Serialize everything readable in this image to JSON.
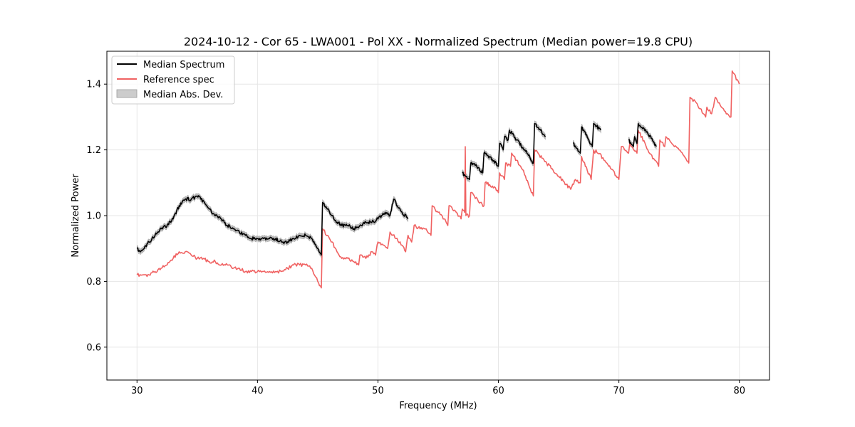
{
  "chart_data": {
    "type": "line",
    "title": "2024-10-12 - Cor 65 - LWA001 - Pol XX - Normalized Spectrum (Median power=19.8 CPU)",
    "xlabel": "Frequency (MHz)",
    "ylabel": "Normalized Power",
    "xlim": [
      27.5,
      82.5
    ],
    "ylim": [
      0.5,
      1.5
    ],
    "xticks": [
      30,
      40,
      50,
      60,
      70,
      80
    ],
    "yticks": [
      0.6,
      0.8,
      1.0,
      1.2,
      1.4
    ],
    "grid": true,
    "legend_position": "upper-left",
    "legend": [
      "Median Spectrum",
      "Reference spec",
      "Median Abs. Dev."
    ],
    "colors": {
      "median": "#000000",
      "reference": "#f06262",
      "mad": "#bdbdbd"
    },
    "series": [
      {
        "name": "Median Spectrum",
        "segments": [
          [
            [
              30.0,
              0.9
            ],
            [
              30.3,
              0.89
            ],
            [
              30.6,
              0.9
            ],
            [
              31.0,
              0.92
            ],
            [
              31.5,
              0.94
            ],
            [
              32.0,
              0.96
            ],
            [
              32.5,
              0.97
            ],
            [
              33.0,
              0.99
            ],
            [
              33.5,
              1.03
            ],
            [
              34.0,
              1.05
            ],
            [
              34.5,
              1.05
            ],
            [
              35.0,
              1.06
            ],
            [
              35.3,
              1.05
            ],
            [
              35.6,
              1.04
            ],
            [
              36.0,
              1.02
            ],
            [
              36.5,
              1.0
            ],
            [
              37.0,
              0.99
            ],
            [
              37.5,
              0.97
            ],
            [
              38.0,
              0.96
            ],
            [
              38.5,
              0.95
            ],
            [
              39.0,
              0.94
            ],
            [
              39.5,
              0.93
            ],
            [
              40.0,
              0.93
            ],
            [
              40.5,
              0.93
            ],
            [
              41.0,
              0.93
            ],
            [
              41.5,
              0.93
            ],
            [
              42.0,
              0.92
            ],
            [
              42.5,
              0.92
            ],
            [
              43.0,
              0.93
            ],
            [
              43.5,
              0.94
            ],
            [
              44.0,
              0.94
            ],
            [
              44.5,
              0.93
            ],
            [
              45.0,
              0.9
            ],
            [
              45.3,
              0.88
            ],
            [
              45.4,
              1.04
            ],
            [
              45.8,
              1.02
            ],
            [
              46.2,
              1.0
            ],
            [
              46.6,
              0.98
            ],
            [
              47.0,
              0.97
            ],
            [
              47.5,
              0.97
            ],
            [
              48.0,
              0.96
            ],
            [
              48.5,
              0.97
            ],
            [
              49.0,
              0.98
            ],
            [
              49.5,
              0.98
            ],
            [
              50.0,
              0.99
            ],
            [
              50.3,
              1.0
            ],
            [
              50.6,
              1.01
            ],
            [
              51.0,
              1.0
            ],
            [
              51.3,
              1.05
            ],
            [
              51.6,
              1.03
            ],
            [
              52.0,
              1.01
            ],
            [
              52.5,
              0.99
            ]
          ],
          [
            [
              57.0,
              1.13
            ],
            [
              57.6,
              1.11
            ],
            [
              57.7,
              1.16
            ],
            [
              58.2,
              1.15
            ],
            [
              58.7,
              1.13
            ],
            [
              58.8,
              1.19
            ],
            [
              59.5,
              1.17
            ],
            [
              60.0,
              1.15
            ],
            [
              60.1,
              1.22
            ],
            [
              60.4,
              1.2
            ],
            [
              60.5,
              1.24
            ],
            [
              60.8,
              1.23
            ],
            [
              60.9,
              1.26
            ],
            [
              61.5,
              1.23
            ],
            [
              62.2,
              1.2
            ],
            [
              62.9,
              1.16
            ],
            [
              63.0,
              1.28
            ],
            [
              63.5,
              1.26
            ],
            [
              63.9,
              1.24
            ]
          ],
          [
            [
              66.2,
              1.22
            ],
            [
              66.8,
              1.19
            ],
            [
              66.9,
              1.27
            ],
            [
              67.8,
              1.21
            ],
            [
              67.9,
              1.28
            ],
            [
              68.5,
              1.26
            ]
          ],
          [
            [
              70.8,
              1.23
            ],
            [
              71.2,
              1.21
            ],
            [
              71.3,
              1.24
            ],
            [
              71.5,
              1.22
            ],
            [
              71.6,
              1.28
            ],
            [
              72.4,
              1.25
            ],
            [
              73.1,
              1.21
            ]
          ]
        ]
      },
      {
        "name": "Reference spec",
        "segments": [
          [
            [
              30.0,
              0.82
            ],
            [
              30.5,
              0.82
            ],
            [
              31.0,
              0.82
            ],
            [
              31.5,
              0.83
            ],
            [
              32.0,
              0.84
            ],
            [
              32.5,
              0.85
            ],
            [
              33.0,
              0.87
            ],
            [
              33.5,
              0.89
            ],
            [
              34.0,
              0.89
            ],
            [
              34.5,
              0.88
            ],
            [
              35.0,
              0.87
            ],
            [
              35.5,
              0.87
            ],
            [
              36.0,
              0.86
            ],
            [
              36.5,
              0.86
            ],
            [
              37.0,
              0.85
            ],
            [
              37.5,
              0.85
            ],
            [
              38.0,
              0.84
            ],
            [
              38.5,
              0.84
            ],
            [
              39.0,
              0.83
            ],
            [
              39.5,
              0.83
            ],
            [
              40.0,
              0.83
            ],
            [
              40.5,
              0.83
            ],
            [
              41.0,
              0.83
            ],
            [
              41.5,
              0.83
            ],
            [
              42.0,
              0.83
            ],
            [
              42.5,
              0.84
            ],
            [
              43.0,
              0.85
            ],
            [
              43.5,
              0.85
            ],
            [
              44.0,
              0.85
            ],
            [
              44.5,
              0.84
            ],
            [
              45.0,
              0.8
            ],
            [
              45.3,
              0.78
            ],
            [
              45.4,
              0.96
            ],
            [
              45.8,
              0.94
            ],
            [
              46.2,
              0.92
            ],
            [
              46.6,
              0.89
            ],
            [
              47.0,
              0.87
            ],
            [
              47.5,
              0.87
            ],
            [
              48.0,
              0.86
            ],
            [
              48.4,
              0.85
            ],
            [
              48.5,
              0.88
            ],
            [
              49.0,
              0.87
            ],
            [
              49.5,
              0.89
            ],
            [
              49.8,
              0.88
            ],
            [
              50.0,
              0.92
            ],
            [
              50.5,
              0.91
            ],
            [
              50.8,
              0.9
            ],
            [
              51.0,
              0.95
            ],
            [
              51.5,
              0.93
            ],
            [
              52.0,
              0.91
            ],
            [
              52.3,
              0.89
            ],
            [
              52.5,
              0.94
            ],
            [
              52.8,
              0.92
            ],
            [
              53.0,
              0.97
            ],
            [
              53.5,
              0.96
            ],
            [
              54.0,
              0.96
            ],
            [
              54.4,
              0.94
            ],
            [
              54.5,
              1.03
            ],
            [
              55.0,
              1.01
            ],
            [
              55.5,
              0.99
            ],
            [
              55.8,
              0.97
            ],
            [
              55.9,
              1.03
            ],
            [
              56.5,
              1.01
            ],
            [
              56.9,
              0.99
            ],
            [
              57.0,
              1.02
            ],
            [
              57.2,
              1.01
            ],
            [
              57.25,
              1.21
            ],
            [
              57.3,
              1.0
            ],
            [
              57.6,
              1.0
            ],
            [
              57.7,
              1.07
            ],
            [
              58.0,
              1.06
            ],
            [
              58.5,
              1.04
            ],
            [
              58.8,
              1.03
            ],
            [
              58.9,
              1.1
            ],
            [
              59.5,
              1.09
            ],
            [
              60.0,
              1.07
            ],
            [
              60.1,
              1.13
            ],
            [
              60.5,
              1.11
            ],
            [
              60.6,
              1.16
            ],
            [
              61.0,
              1.15
            ],
            [
              61.1,
              1.19
            ],
            [
              62.0,
              1.14
            ],
            [
              62.9,
              1.06
            ],
            [
              63.0,
              1.2
            ],
            [
              64.0,
              1.16
            ],
            [
              65.0,
              1.12
            ],
            [
              66.0,
              1.08
            ],
            [
              66.4,
              1.11
            ],
            [
              66.8,
              1.1
            ],
            [
              66.9,
              1.18
            ],
            [
              67.7,
              1.11
            ],
            [
              67.9,
              1.2
            ],
            [
              68.0,
              1.19
            ],
            [
              68.1,
              1.2
            ],
            [
              69.0,
              1.16
            ],
            [
              70.0,
              1.11
            ],
            [
              70.2,
              1.21
            ],
            [
              70.8,
              1.19
            ],
            [
              70.9,
              1.22
            ],
            [
              71.5,
              1.19
            ],
            [
              71.6,
              1.26
            ],
            [
              72.4,
              1.2
            ],
            [
              73.3,
              1.15
            ],
            [
              73.4,
              1.23
            ],
            [
              73.8,
              1.21
            ],
            [
              73.9,
              1.24
            ],
            [
              74.6,
              1.21
            ],
            [
              75.0,
              1.2
            ],
            [
              75.8,
              1.16
            ],
            [
              75.9,
              1.36
            ],
            [
              76.5,
              1.34
            ],
            [
              77.0,
              1.31
            ],
            [
              77.2,
              1.3
            ],
            [
              77.3,
              1.33
            ],
            [
              77.7,
              1.31
            ],
            [
              78.0,
              1.36
            ],
            [
              78.5,
              1.33
            ],
            [
              79.0,
              1.31
            ],
            [
              79.3,
              1.3
            ],
            [
              79.4,
              1.44
            ],
            [
              80.0,
              1.4
            ]
          ]
        ]
      }
    ]
  },
  "legend_labels": {
    "median": "Median Spectrum",
    "reference": "Reference spec",
    "mad": "Median Abs. Dev."
  }
}
